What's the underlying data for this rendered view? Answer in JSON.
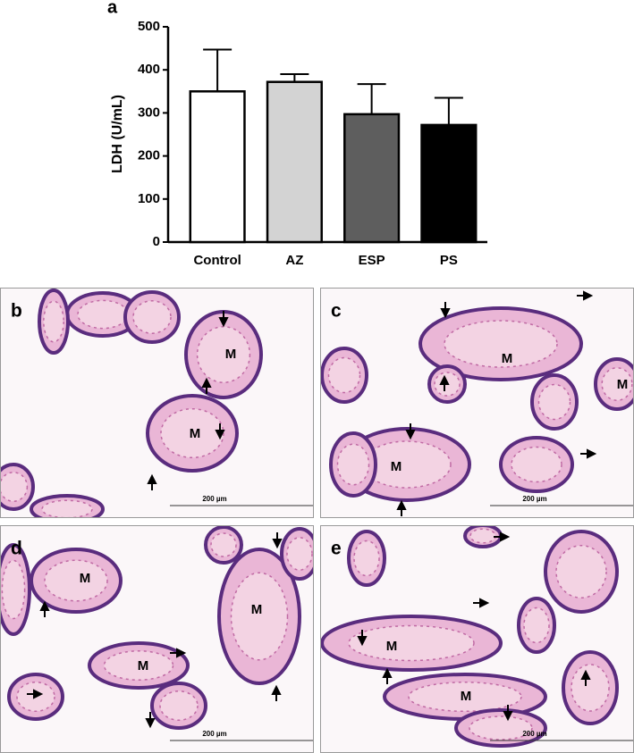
{
  "chart_data": {
    "type": "bar",
    "panel_label": "a",
    "y_label": "LDH (U/mL)",
    "categories": [
      "Control",
      "AZ",
      "ESP",
      "PS"
    ],
    "values": [
      350,
      372,
      297,
      272
    ],
    "errors": [
      97,
      18,
      70,
      63
    ],
    "colors": [
      "#ffffff",
      "#d3d3d3",
      "#5e5e5e",
      "#000000"
    ],
    "ylim": [
      0,
      500
    ],
    "yticks": [
      0,
      100,
      200,
      300,
      400,
      500
    ]
  },
  "micrographs": [
    {
      "label": "b",
      "scale_bar": "200 µm",
      "region_labels": [
        "M",
        "M"
      ]
    },
    {
      "label": "c",
      "scale_bar": "200 µm",
      "region_labels": [
        "M",
        "M",
        "M"
      ]
    },
    {
      "label": "d",
      "scale_bar": "200 µm",
      "region_labels": [
        "M",
        "M",
        "M"
      ]
    },
    {
      "label": "e",
      "scale_bar": "200 µm",
      "region_labels": [
        "M",
        "M"
      ]
    }
  ]
}
